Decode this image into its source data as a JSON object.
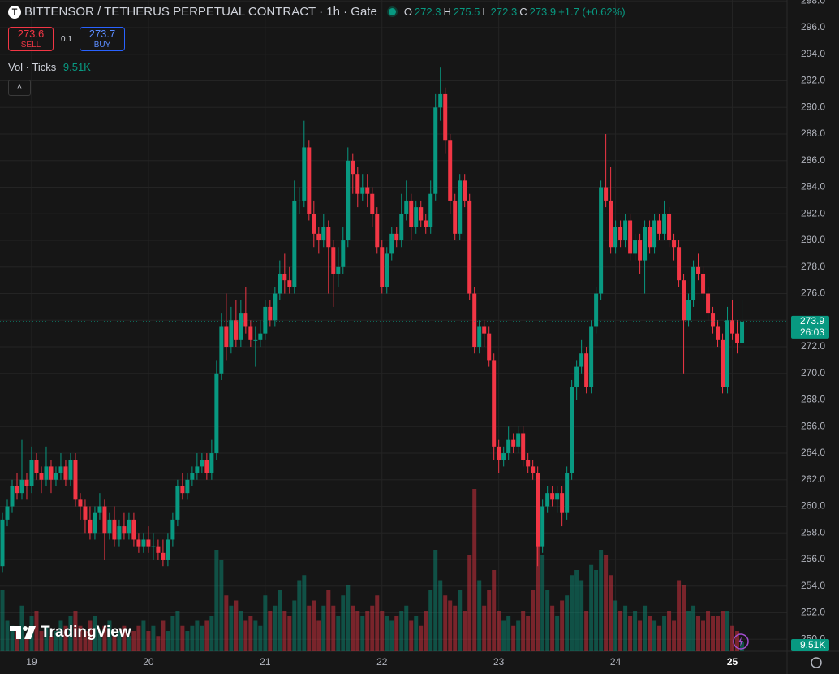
{
  "header": {
    "logo": "T",
    "ohlc_labels": [
      "O",
      "H",
      "L",
      "C"
    ],
    "change": "+1.7 (+0.62%)",
    "sell": {
      "price": 273.6,
      "label": "SELL"
    },
    "spread": 0.1,
    "buy": {
      "price": 273.7,
      "label": "BUY"
    },
    "volume_indicator": "Vol · Ticks",
    "countdown": "26:03",
    "brand": "TradingView"
  },
  "chart_data": {
    "type": "candlestick",
    "title": "BITTENSOR / TETHERUS PERPETUAL CONTRACT · 1h · Gate",
    "up_color": "#089981",
    "down_color": "#f23645",
    "grid": true,
    "ylim": [
      249.1,
      298.08
    ],
    "xlim": [
      -0.5,
      161.25
    ],
    "yticks": [
      {
        "value": 250,
        "label": "250.0"
      },
      {
        "value": 252,
        "label": "252.0"
      },
      {
        "value": 254,
        "label": "254.0"
      },
      {
        "value": 256,
        "label": "256.0"
      },
      {
        "value": 258,
        "label": "258.0"
      },
      {
        "value": 260,
        "label": "260.0"
      },
      {
        "value": 262,
        "label": "262.0"
      },
      {
        "value": 264,
        "label": "264.0"
      },
      {
        "value": 266,
        "label": "266.0"
      },
      {
        "value": 268,
        "label": "268.0"
      },
      {
        "value": 270,
        "label": "270.0"
      },
      {
        "value": 272,
        "label": "272.0"
      },
      {
        "value": 274,
        "label": "274.0"
      },
      {
        "value": 276,
        "label": "276.0"
      },
      {
        "value": 278,
        "label": "278.0"
      },
      {
        "value": 280,
        "label": "280.0"
      },
      {
        "value": 282,
        "label": "282.0"
      },
      {
        "value": 284,
        "label": "284.0"
      },
      {
        "value": 286,
        "label": "286.0"
      },
      {
        "value": 288,
        "label": "288.0"
      },
      {
        "value": 290,
        "label": "290.0"
      },
      {
        "value": 292,
        "label": "292.0"
      },
      {
        "value": 294,
        "label": "294.0"
      },
      {
        "value": 296,
        "label": "296.0"
      },
      {
        "value": 298,
        "label": "298.0"
      }
    ],
    "xticks": [
      {
        "value": 6,
        "label": "19"
      },
      {
        "value": 30,
        "label": "20"
      },
      {
        "value": 54,
        "label": "21"
      },
      {
        "value": 78,
        "label": "22"
      },
      {
        "value": 102,
        "label": "23"
      },
      {
        "value": 126,
        "label": "24"
      },
      {
        "value": 150,
        "label": "25"
      }
    ],
    "ohlc": [
      [
        255.5,
        259.5,
        255.0,
        259.0
      ],
      [
        259.0,
        260.5,
        258.5,
        260.0
      ],
      [
        260.0,
        262.0,
        259.5,
        261.5
      ],
      [
        261.5,
        262.5,
        260.5,
        261.0
      ],
      [
        261.0,
        265.0,
        260.5,
        262.0
      ],
      [
        262.0,
        262.5,
        260.5,
        261.5
      ],
      [
        261.5,
        264.5,
        261.0,
        263.5
      ],
      [
        263.5,
        264.0,
        262.0,
        262.5
      ],
      [
        262.5,
        263.0,
        261.0,
        262.0
      ],
      [
        262.0,
        264.5,
        261.5,
        263.0
      ],
      [
        263.0,
        263.5,
        261.0,
        262.0
      ],
      [
        262.0,
        263.0,
        261.5,
        262.5
      ],
      [
        262.5,
        264.0,
        262.0,
        263.0
      ],
      [
        263.0,
        263.5,
        261.5,
        262.0
      ],
      [
        262.0,
        264.0,
        261.5,
        263.5
      ],
      [
        263.5,
        264.0,
        260.0,
        260.5
      ],
      [
        260.5,
        261.0,
        259.0,
        260.0
      ],
      [
        260.0,
        260.5,
        258.0,
        259.0
      ],
      [
        259.0,
        260.0,
        257.5,
        258.0
      ],
      [
        258.0,
        260.0,
        257.5,
        259.5
      ],
      [
        259.5,
        261.0,
        259.0,
        260.0
      ],
      [
        260.0,
        260.5,
        256.0,
        258.0
      ],
      [
        258.0,
        259.5,
        257.5,
        259.0
      ],
      [
        259.0,
        260.0,
        257.0,
        257.5
      ],
      [
        257.5,
        259.0,
        257.0,
        258.5
      ],
      [
        258.5,
        259.5,
        257.5,
        258.0
      ],
      [
        258.0,
        259.5,
        257.5,
        259.0
      ],
      [
        259.0,
        259.5,
        257.0,
        257.5
      ],
      [
        257.5,
        258.0,
        256.5,
        257.0
      ],
      [
        257.0,
        258.0,
        256.5,
        257.5
      ],
      [
        257.5,
        258.5,
        256.5,
        257.0
      ],
      [
        257.0,
        258.0,
        256.0,
        257.0
      ],
      [
        257.0,
        257.5,
        256.0,
        256.5
      ],
      [
        256.5,
        257.5,
        255.5,
        256.0
      ],
      [
        256.0,
        258.0,
        255.5,
        257.5
      ],
      [
        257.5,
        259.5,
        257.0,
        259.0
      ],
      [
        259.0,
        262.0,
        258.5,
        261.5
      ],
      [
        261.5,
        262.5,
        260.5,
        261.0
      ],
      [
        261.0,
        262.5,
        260.5,
        262.0
      ],
      [
        262.0,
        263.0,
        261.5,
        262.5
      ],
      [
        262.5,
        264.0,
        262.0,
        263.0
      ],
      [
        263.0,
        264.0,
        262.5,
        263.5
      ],
      [
        263.5,
        264.0,
        262.0,
        262.5
      ],
      [
        262.5,
        265.0,
        262.0,
        264.0
      ],
      [
        264.0,
        271.0,
        263.5,
        270.0
      ],
      [
        270.0,
        274.5,
        269.5,
        273.5
      ],
      [
        273.5,
        276.0,
        271.0,
        272.0
      ],
      [
        272.0,
        275.0,
        271.5,
        274.0
      ],
      [
        274.0,
        275.5,
        272.0,
        272.5
      ],
      [
        272.5,
        275.5,
        272.0,
        274.5
      ],
      [
        274.5,
        276.5,
        273.0,
        273.5
      ],
      [
        273.5,
        274.0,
        272.0,
        272.5
      ],
      [
        272.5,
        273.5,
        270.5,
        272.5
      ],
      [
        272.5,
        274.0,
        272.0,
        273.0
      ],
      [
        273.0,
        275.5,
        272.5,
        275.0
      ],
      [
        275.0,
        275.5,
        273.5,
        274.0
      ],
      [
        274.0,
        276.5,
        273.5,
        276.0
      ],
      [
        276.0,
        278.5,
        275.5,
        277.5
      ],
      [
        277.5,
        279.0,
        276.0,
        277.0
      ],
      [
        277.0,
        278.0,
        276.0,
        276.5
      ],
      [
        276.5,
        284.5,
        276.0,
        283.0
      ],
      [
        283.0,
        284.0,
        282.0,
        283.0
      ],
      [
        283.0,
        289.0,
        282.5,
        287.0
      ],
      [
        287.0,
        287.5,
        281.5,
        282.0
      ],
      [
        282.0,
        283.0,
        279.5,
        280.5
      ],
      [
        280.5,
        281.0,
        279.0,
        280.0
      ],
      [
        280.0,
        282.0,
        279.5,
        281.0
      ],
      [
        281.0,
        281.5,
        276.0,
        279.5
      ],
      [
        279.5,
        280.0,
        275.0,
        277.5
      ],
      [
        277.5,
        279.5,
        276.5,
        278.0
      ],
      [
        278.0,
        281.0,
        277.5,
        280.0
      ],
      [
        280.0,
        287.0,
        279.5,
        286.0
      ],
      [
        286.0,
        286.5,
        283.5,
        285.0
      ],
      [
        285.0,
        285.5,
        282.5,
        283.5
      ],
      [
        283.5,
        285.0,
        283.0,
        284.0
      ],
      [
        284.0,
        285.0,
        282.5,
        283.5
      ],
      [
        283.5,
        284.0,
        281.0,
        282.0
      ],
      [
        282.0,
        282.5,
        279.0,
        279.5
      ],
      [
        279.5,
        280.0,
        276.0,
        276.5
      ],
      [
        276.5,
        279.5,
        276.0,
        279.0
      ],
      [
        279.0,
        281.0,
        278.5,
        280.5
      ],
      [
        280.5,
        281.0,
        279.5,
        280.0
      ],
      [
        280.0,
        283.5,
        279.5,
        282.0
      ],
      [
        282.0,
        284.5,
        281.5,
        283.0
      ],
      [
        283.0,
        283.5,
        280.0,
        281.0
      ],
      [
        281.0,
        283.0,
        280.5,
        282.5
      ],
      [
        282.5,
        283.0,
        281.0,
        281.5
      ],
      [
        281.5,
        282.0,
        280.5,
        281.0
      ],
      [
        281.0,
        284.5,
        280.5,
        283.5
      ],
      [
        283.5,
        291.0,
        283.0,
        290.0
      ],
      [
        290.0,
        293.0,
        289.0,
        291.0
      ],
      [
        291.0,
        291.5,
        286.5,
        287.5
      ],
      [
        287.5,
        288.0,
        282.0,
        283.0
      ],
      [
        283.0,
        283.5,
        280.0,
        280.5
      ],
      [
        280.5,
        285.0,
        280.0,
        284.5
      ],
      [
        284.5,
        285.0,
        282.5,
        283.0
      ],
      [
        283.0,
        283.5,
        275.5,
        276.0
      ],
      [
        276.0,
        276.5,
        271.5,
        272.0
      ],
      [
        272.0,
        274.0,
        271.5,
        273.5
      ],
      [
        273.5,
        274.0,
        272.0,
        273.0
      ],
      [
        273.0,
        273.5,
        270.5,
        271.0
      ],
      [
        271.0,
        271.5,
        263.5,
        264.5
      ],
      [
        264.5,
        265.0,
        262.5,
        263.5
      ],
      [
        263.5,
        264.5,
        263.0,
        264.0
      ],
      [
        264.0,
        266.0,
        263.5,
        265.0
      ],
      [
        265.0,
        265.5,
        264.0,
        264.5
      ],
      [
        264.5,
        266.0,
        264.0,
        265.5
      ],
      [
        265.5,
        266.0,
        263.0,
        263.5
      ],
      [
        263.5,
        264.0,
        262.5,
        263.0
      ],
      [
        263.0,
        263.5,
        262.0,
        262.5
      ],
      [
        262.5,
        263.0,
        255.5,
        257.0
      ],
      [
        257.0,
        260.5,
        256.5,
        260.0
      ],
      [
        260.0,
        261.5,
        259.5,
        261.0
      ],
      [
        261.0,
        261.5,
        260.0,
        260.5
      ],
      [
        260.5,
        261.5,
        259.5,
        261.0
      ],
      [
        261.0,
        261.5,
        258.5,
        259.5
      ],
      [
        259.5,
        263.0,
        259.0,
        262.5
      ],
      [
        262.5,
        269.5,
        262.0,
        269.0
      ],
      [
        269.0,
        271.0,
        268.0,
        270.5
      ],
      [
        270.5,
        272.5,
        270.0,
        271.5
      ],
      [
        271.5,
        272.0,
        268.5,
        269.0
      ],
      [
        269.0,
        274.0,
        268.5,
        273.5
      ],
      [
        273.5,
        276.5,
        273.0,
        276.0
      ],
      [
        276.0,
        284.5,
        275.5,
        284.0
      ],
      [
        284.0,
        288.0,
        282.5,
        283.0
      ],
      [
        283.0,
        285.5,
        279.0,
        279.5
      ],
      [
        279.5,
        281.5,
        279.0,
        281.0
      ],
      [
        281.0,
        281.5,
        279.5,
        280.0
      ],
      [
        280.0,
        282.0,
        279.5,
        281.5
      ],
      [
        281.5,
        282.0,
        278.5,
        279.0
      ],
      [
        279.0,
        280.5,
        278.5,
        280.0
      ],
      [
        280.0,
        280.5,
        277.5,
        278.5
      ],
      [
        278.5,
        281.5,
        276.0,
        281.0
      ],
      [
        281.0,
        281.5,
        279.0,
        279.5
      ],
      [
        279.5,
        282.0,
        279.0,
        281.5
      ],
      [
        281.5,
        282.0,
        280.0,
        280.5
      ],
      [
        280.5,
        283.0,
        280.0,
        282.0
      ],
      [
        282.0,
        282.5,
        279.5,
        280.0
      ],
      [
        280.0,
        280.5,
        278.5,
        279.5
      ],
      [
        279.5,
        280.0,
        276.5,
        277.0
      ],
      [
        277.0,
        277.5,
        270.0,
        274.0
      ],
      [
        274.0,
        276.0,
        273.5,
        275.5
      ],
      [
        275.5,
        278.5,
        275.0,
        278.0
      ],
      [
        278.0,
        279.0,
        277.0,
        277.5
      ],
      [
        277.5,
        278.0,
        275.5,
        276.0
      ],
      [
        276.0,
        276.5,
        274.0,
        274.5
      ],
      [
        274.5,
        275.0,
        273.0,
        273.5
      ],
      [
        273.5,
        274.0,
        272.0,
        272.5
      ],
      [
        272.5,
        273.0,
        268.5,
        269.0
      ],
      [
        269.0,
        275.0,
        268.5,
        274.0
      ],
      [
        274.0,
        275.5,
        272.5,
        273.0
      ],
      [
        273.0,
        274.0,
        271.5,
        272.3
      ],
      [
        272.3,
        275.5,
        272.3,
        273.9
      ]
    ],
    "volume": [
      60,
      30,
      25,
      20,
      45,
      15,
      35,
      40,
      20,
      25,
      15,
      20,
      30,
      25,
      35,
      40,
      25,
      20,
      30,
      35,
      20,
      25,
      30,
      15,
      20,
      25,
      15,
      20,
      25,
      30,
      20,
      25,
      15,
      30,
      20,
      35,
      40,
      25,
      20,
      25,
      30,
      25,
      30,
      35,
      100,
      90,
      55,
      45,
      50,
      40,
      30,
      35,
      30,
      25,
      55,
      40,
      45,
      60,
      40,
      35,
      50,
      70,
      75,
      45,
      50,
      30,
      45,
      60,
      45,
      35,
      55,
      65,
      45,
      40,
      35,
      40,
      45,
      55,
      40,
      35,
      30,
      35,
      40,
      45,
      30,
      35,
      25,
      40,
      60,
      100,
      70,
      55,
      50,
      45,
      60,
      40,
      95,
      160,
      70,
      45,
      60,
      80,
      40,
      30,
      35,
      25,
      30,
      40,
      35,
      60,
      110,
      95,
      60,
      45,
      35,
      50,
      55,
      75,
      80,
      70,
      40,
      85,
      80,
      100,
      95,
      75,
      50,
      40,
      45,
      35,
      40,
      30,
      45,
      35,
      30,
      25,
      35,
      40,
      30,
      70,
      65,
      40,
      45,
      35,
      30,
      40,
      35,
      35,
      40,
      40,
      25,
      20,
      9.51
    ],
    "volume_label": "9.51K"
  }
}
